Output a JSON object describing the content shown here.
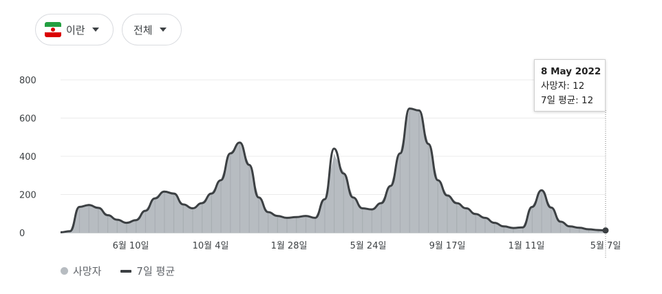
{
  "controls": {
    "country_label": "이란",
    "range_label": "전체"
  },
  "tooltip": {
    "date": "8 May 2022",
    "deaths_label": "사망자",
    "deaths_value": "12",
    "avg_label": "7일 평균",
    "avg_value": "12"
  },
  "legend": {
    "deaths": "사망자",
    "avg": "7일 평균"
  },
  "colors": {
    "bars": "#b7bcc1",
    "avg_line": "#3c4043",
    "grid": "#ebebeb"
  },
  "chart_data": {
    "type": "bar",
    "title": "",
    "xlabel": "",
    "ylabel": "",
    "ylim": [
      0,
      800
    ],
    "yticks": [
      "800",
      "600",
      "400",
      "200",
      "0"
    ],
    "ytick_values": [
      800,
      600,
      400,
      200,
      0
    ],
    "xticks": [
      "6월 10일",
      "10월 4일",
      "1월 28일",
      "5월 24일",
      "9월 17일",
      "1월 11일",
      "5월 7일"
    ],
    "x": [
      "2020-02-19",
      "2020-03-04",
      "2020-03-18",
      "2020-04-01",
      "2020-04-15",
      "2020-04-29",
      "2020-05-13",
      "2020-05-27",
      "2020-06-10",
      "2020-06-24",
      "2020-07-08",
      "2020-07-22",
      "2020-08-05",
      "2020-08-19",
      "2020-09-02",
      "2020-09-16",
      "2020-09-30",
      "2020-10-14",
      "2020-10-28",
      "2020-11-11",
      "2020-11-25",
      "2020-12-09",
      "2020-12-23",
      "2021-01-06",
      "2021-01-20",
      "2021-02-03",
      "2021-02-17",
      "2021-03-03",
      "2021-03-17",
      "2021-03-31",
      "2021-04-14",
      "2021-04-28",
      "2021-05-12",
      "2021-05-26",
      "2021-06-09",
      "2021-06-23",
      "2021-07-07",
      "2021-07-21",
      "2021-08-04",
      "2021-08-18",
      "2021-09-01",
      "2021-09-15",
      "2021-09-29",
      "2021-10-13",
      "2021-10-27",
      "2021-11-10",
      "2021-11-24",
      "2021-12-08",
      "2021-12-22",
      "2022-01-05",
      "2022-01-19",
      "2022-02-02",
      "2022-02-16",
      "2022-03-02",
      "2022-03-16",
      "2022-03-30",
      "2022-04-13",
      "2022-04-27",
      "2022-05-08"
    ],
    "series": [
      {
        "name": "사망자",
        "values": [
          2,
          8,
          140,
          150,
          135,
          95,
          70,
          55,
          70,
          120,
          185,
          220,
          210,
          150,
          130,
          160,
          210,
          280,
          420,
          470,
          360,
          190,
          110,
          90,
          80,
          85,
          90,
          80,
          180,
          410,
          320,
          190,
          130,
          125,
          160,
          250,
          420,
          650,
          640,
          470,
          280,
          200,
          160,
          130,
          100,
          80,
          55,
          35,
          28,
          30,
          140,
          225,
          135,
          60,
          35,
          28,
          20,
          14,
          12
        ]
      },
      {
        "name": "7일 평균",
        "values": [
          2,
          8,
          135,
          145,
          130,
          92,
          68,
          52,
          66,
          115,
          180,
          215,
          205,
          148,
          128,
          155,
          205,
          275,
          415,
          472,
          355,
          185,
          108,
          88,
          78,
          82,
          88,
          78,
          175,
          440,
          310,
          185,
          128,
          122,
          155,
          245,
          415,
          650,
          640,
          465,
          275,
          195,
          155,
          128,
          98,
          78,
          52,
          33,
          25,
          28,
          135,
          222,
          132,
          58,
          33,
          26,
          18,
          14,
          12
        ]
      }
    ]
  }
}
